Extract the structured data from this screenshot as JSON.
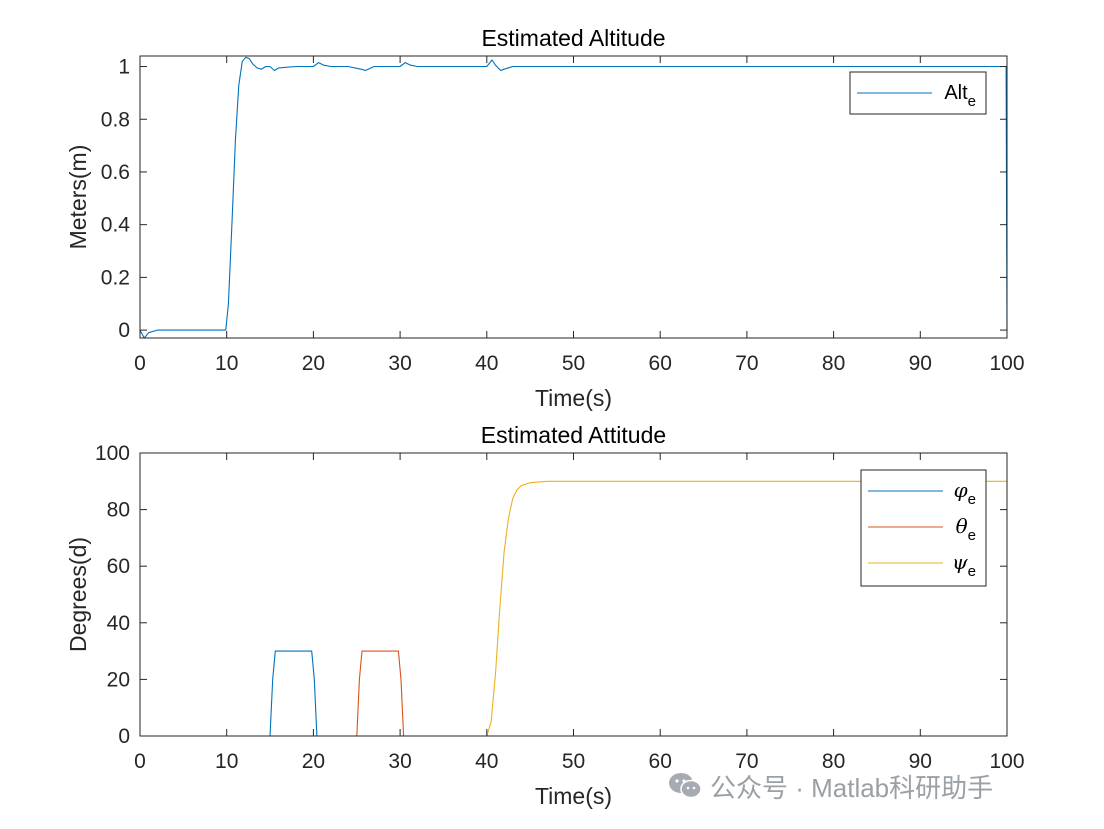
{
  "chart_data": [
    {
      "type": "line",
      "title": "Estimated Altitude",
      "xlabel": "Time(s)",
      "ylabel": "Meters(m)",
      "xlim": [
        0,
        100
      ],
      "ylim": [
        -0.03,
        1.04
      ],
      "xticks": [
        "0",
        "10",
        "20",
        "30",
        "40",
        "50",
        "60",
        "70",
        "80",
        "90",
        "100"
      ],
      "yticks": [
        "0",
        "0.2",
        "0.4",
        "0.6",
        "0.8",
        "1"
      ],
      "legend": {
        "placement": "top-right"
      },
      "series": [
        {
          "name": "Alt",
          "subscript": "e",
          "color": "#0072BD",
          "x": [
            0,
            0.5,
            1,
            2,
            3,
            5,
            8,
            9.9,
            10.2,
            10.6,
            11,
            11.4,
            11.8,
            12.2,
            12.6,
            13,
            13.5,
            14,
            14.5,
            15,
            15.5,
            16,
            18,
            20,
            20.6,
            21.2,
            22,
            24,
            25.5,
            26,
            27,
            30,
            30.6,
            31.2,
            32,
            35,
            40,
            40.6,
            41,
            41.6,
            42,
            43,
            45,
            60,
            80,
            99.9,
            100
          ],
          "y": [
            0,
            -0.03,
            -0.01,
            0,
            0,
            0,
            0,
            0,
            0.1,
            0.4,
            0.72,
            0.93,
            1.02,
            1.035,
            1.03,
            1.01,
            0.995,
            0.99,
            1.0,
            1.0,
            0.985,
            0.995,
            1.0,
            1.0,
            1.015,
            1.005,
            1.0,
            1.0,
            0.99,
            0.985,
            1.0,
            1.0,
            1.015,
            1.005,
            1.0,
            1.0,
            1.0,
            1.025,
            1.005,
            0.985,
            0.99,
            1.0,
            1.0,
            1.0,
            1.0,
            1.0,
            0
          ]
        }
      ]
    },
    {
      "type": "line",
      "title": "Estimated Attitude",
      "xlabel": "Time(s)",
      "ylabel": "Degrees(d)",
      "xlim": [
        0,
        100
      ],
      "ylim": [
        0,
        100
      ],
      "xticks": [
        "0",
        "10",
        "20",
        "30",
        "40",
        "50",
        "60",
        "70",
        "80",
        "90",
        "100"
      ],
      "yticks": [
        "0",
        "20",
        "40",
        "60",
        "80",
        "100"
      ],
      "legend": {
        "placement": "top-right"
      },
      "series": [
        {
          "name": "φ",
          "subscript": "e",
          "color": "#0072BD",
          "x": [
            0,
            15,
            15.3,
            15.6,
            19.8,
            20.1,
            20.4,
            100
          ],
          "y": [
            0,
            0,
            20,
            30,
            30,
            20,
            0,
            0
          ]
        },
        {
          "name": "θ",
          "subscript": "e",
          "color": "#D95319",
          "x": [
            0,
            25,
            25.3,
            25.6,
            29.8,
            30.1,
            30.4,
            100
          ],
          "y": [
            0,
            0,
            20,
            30,
            30,
            20,
            0,
            0
          ]
        },
        {
          "name": "ψ",
          "subscript": "e",
          "color": "#EDB120",
          "x": [
            0,
            40,
            40.5,
            41,
            41.5,
            42,
            42.5,
            43,
            43.5,
            44,
            45,
            47,
            50,
            100
          ],
          "y": [
            0,
            0,
            5,
            22,
            45,
            65,
            77,
            84,
            87,
            88.5,
            89.5,
            90,
            90,
            90
          ]
        }
      ]
    }
  ],
  "watermark": "公众号 · Matlab科研助手"
}
